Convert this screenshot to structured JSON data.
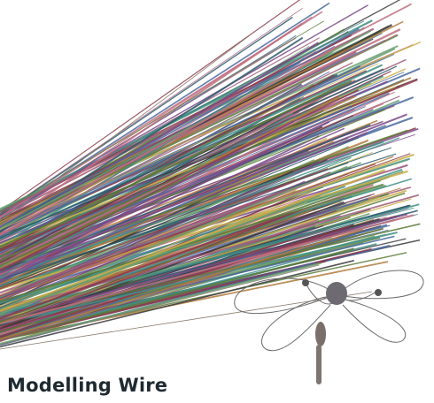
{
  "product": {
    "title": "Modelling Wire"
  }
}
